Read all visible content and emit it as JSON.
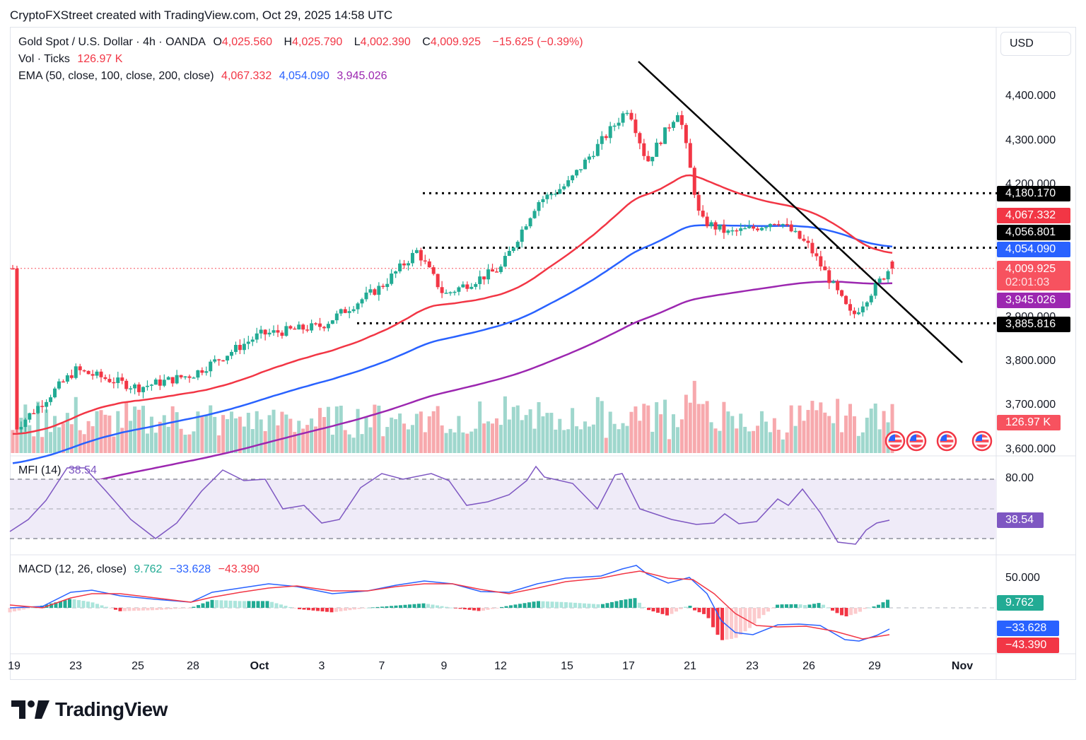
{
  "attribution": "CryptoFXStreet created with TradingView.com, Oct 29, 2025 14:58 UTC",
  "legend": {
    "symbol": "Gold Spot / U.S. Dollar · 4h · OANDA",
    "open_label": "O",
    "open": "4,025.560",
    "high_label": "H",
    "high": "4,025.790",
    "low_label": "L",
    "low": "4,002.390",
    "close_label": "C",
    "close": "4,009.925",
    "change": "−15.625 (−0.39%)",
    "vol_label": "Vol · Ticks",
    "vol_value": "126.97 K",
    "ema_label": "EMA (50, close, 100, close, 200, close)",
    "ema50": "4,067.332",
    "ema100": "4,054.090",
    "ema200": "3,945.026",
    "mfi_label": "MFI (14)",
    "mfi_value": "38.54",
    "macd_label": "MACD (12, 26, close)",
    "macd_hist": "9.762",
    "macd_line": "−33.628",
    "macd_signal": "−43.390"
  },
  "price_axis": {
    "currency": "USD",
    "ticks": [
      "4,400.000",
      "4,300.000",
      "4,200.000",
      "3,900.000",
      "3,800.000",
      "3,700.000",
      "3,600.000"
    ],
    "tags": {
      "resistance_high": "4,180.170",
      "ema50": "4,067.332",
      "resistance_mid": "4,056.801",
      "ema100": "4,054.090",
      "last_price": "4,009.925",
      "countdown": "02:01:03",
      "ema200": "3,945.026",
      "support": "3,885.816",
      "volume": "126.97 K"
    }
  },
  "mfi_axis": {
    "tick": "80.00",
    "value": "38.54"
  },
  "macd_axis": {
    "tick": "50.000",
    "hist": "9.762",
    "macd": "−33.628",
    "signal": "−43.390"
  },
  "date_axis": [
    {
      "label": "19",
      "bold": false
    },
    {
      "label": "23",
      "bold": false
    },
    {
      "label": "25",
      "bold": false
    },
    {
      "label": "28",
      "bold": false
    },
    {
      "label": "Oct",
      "bold": true
    },
    {
      "label": "3",
      "bold": false
    },
    {
      "label": "7",
      "bold": false
    },
    {
      "label": "9",
      "bold": false
    },
    {
      "label": "12",
      "bold": false
    },
    {
      "label": "15",
      "bold": false
    },
    {
      "label": "17",
      "bold": false
    },
    {
      "label": "21",
      "bold": false
    },
    {
      "label": "23",
      "bold": false
    },
    {
      "label": "26",
      "bold": false
    },
    {
      "label": "29",
      "bold": false
    },
    {
      "label": "Nov",
      "bold": true
    }
  ],
  "events": [
    {
      "name": "us-economic-event",
      "flag": "US"
    },
    {
      "name": "us-economic-event",
      "flag": "US"
    },
    {
      "name": "us-economic-event",
      "flag": "US"
    },
    {
      "name": "us-economic-event",
      "flag": "US"
    }
  ],
  "logo_text": "TradingView",
  "colors": {
    "up": "#22ab94",
    "down": "#f23645",
    "ema50": "#f23645",
    "ema100": "#2962ff",
    "ema200": "#9c27b0",
    "mfi": "#7e57c2",
    "last_price": "#f7525f",
    "trendline": "#000000"
  },
  "chart_data": {
    "type": "candlestick",
    "title": "Gold Spot / U.S. Dollar · 4h · OANDA",
    "interval": "4h",
    "x_range": [
      "Sep 19",
      "Oct 29"
    ],
    "ylim": [
      3600,
      4460
    ],
    "key_points": [
      {
        "date": "Sep 19",
        "close": 3645
      },
      {
        "date": "Sep 23",
        "close": 3780
      },
      {
        "date": "Sep 25",
        "close": 3740
      },
      {
        "date": "Sep 28",
        "close": 3770
      },
      {
        "date": "Oct 1",
        "close": 3860
      },
      {
        "date": "Oct 3",
        "close": 3880
      },
      {
        "date": "Oct 7",
        "close": 3970
      },
      {
        "date": "Oct 8",
        "close": 4050
      },
      {
        "date": "Oct 9",
        "close": 3950
      },
      {
        "date": "Oct 12",
        "close": 4010
      },
      {
        "date": "Oct 13",
        "close": 4160
      },
      {
        "date": "Oct 15",
        "close": 4200
      },
      {
        "date": "Oct 17",
        "close": 4375
      },
      {
        "date": "Oct 18",
        "close": 4250
      },
      {
        "date": "Oct 20",
        "close": 4370
      },
      {
        "date": "Oct 21",
        "close": 4120
      },
      {
        "date": "Oct 22",
        "close": 4090
      },
      {
        "date": "Oct 23",
        "close": 4100
      },
      {
        "date": "Oct 24",
        "close": 4120
      },
      {
        "date": "Oct 26",
        "close": 4060
      },
      {
        "date": "Oct 27",
        "close": 3980
      },
      {
        "date": "Oct 28",
        "close": 3900
      },
      {
        "date": "Oct 29",
        "close": 4009.925
      }
    ],
    "last_ohlc": {
      "open": 4025.56,
      "high": 4025.79,
      "low": 4002.39,
      "close": 4009.925
    },
    "ema": {
      "ema50": 4067.332,
      "ema100": 4054.09,
      "ema200": 3945.026
    },
    "horizontal_levels": [
      4180.17,
      4056.801,
      3885.816
    ],
    "trendline": {
      "from": {
        "date": "Oct 17",
        "price": 4480
      },
      "to": {
        "date": "Oct 31",
        "price": 3800
      }
    },
    "volume_last": 126970,
    "mfi": {
      "period": 14,
      "last": 38.54,
      "bands": [
        80,
        50,
        20
      ]
    },
    "macd": {
      "fast": 12,
      "slow": 26,
      "histogram": 9.762,
      "macd": -33.628,
      "signal": -43.39
    },
    "grid": false,
    "legend_position": "top-left"
  }
}
